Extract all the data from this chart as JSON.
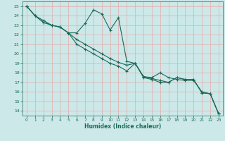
{
  "xlabel": "Humidex (Indice chaleur)",
  "xlim": [
    -0.5,
    23.5
  ],
  "ylim": [
    13.5,
    25.5
  ],
  "yticks": [
    14,
    15,
    16,
    17,
    18,
    19,
    20,
    21,
    22,
    23,
    24,
    25
  ],
  "xticks": [
    0,
    1,
    2,
    3,
    4,
    5,
    6,
    7,
    8,
    9,
    10,
    11,
    12,
    13,
    14,
    15,
    16,
    17,
    18,
    19,
    20,
    21,
    22,
    23
  ],
  "bg_color": "#cce8e8",
  "grid_color": "#e8aaaa",
  "line_color": "#1a6b5a",
  "line1_x": [
    0,
    1,
    2,
    3,
    4,
    5,
    6,
    7,
    8,
    9,
    10,
    11,
    12,
    13,
    14,
    15,
    16,
    17,
    18,
    19,
    20,
    21,
    22,
    23
  ],
  "line1_y": [
    25.0,
    24.0,
    23.5,
    23.0,
    22.8,
    22.2,
    22.2,
    23.2,
    24.6,
    24.2,
    22.5,
    23.8,
    19.2,
    19.0,
    17.6,
    17.5,
    18.0,
    17.5,
    17.3,
    17.2,
    17.2,
    16.0,
    15.8,
    13.7
  ],
  "line2_x": [
    0,
    1,
    2,
    3,
    4,
    5,
    6,
    7,
    8,
    9,
    10,
    11,
    12,
    13,
    14,
    15,
    16,
    17,
    18,
    19,
    20,
    21,
    22,
    23
  ],
  "line2_y": [
    25.0,
    24.0,
    23.3,
    23.0,
    22.8,
    22.2,
    21.5,
    21.0,
    20.5,
    20.0,
    19.5,
    19.1,
    18.8,
    19.0,
    17.6,
    17.4,
    17.2,
    17.0,
    17.5,
    17.3,
    17.3,
    15.9,
    15.8,
    13.7
  ],
  "line3_x": [
    0,
    1,
    2,
    3,
    4,
    5,
    6,
    7,
    8,
    9,
    10,
    11,
    12,
    13,
    14,
    15,
    16,
    17,
    18,
    19,
    20,
    21,
    22,
    23
  ],
  "line3_y": [
    25.0,
    24.0,
    23.3,
    23.0,
    22.8,
    22.2,
    21.0,
    20.5,
    20.0,
    19.5,
    19.0,
    18.7,
    18.2,
    19.0,
    17.5,
    17.3,
    17.0,
    17.0,
    17.5,
    17.3,
    17.3,
    15.9,
    15.8,
    13.7
  ]
}
